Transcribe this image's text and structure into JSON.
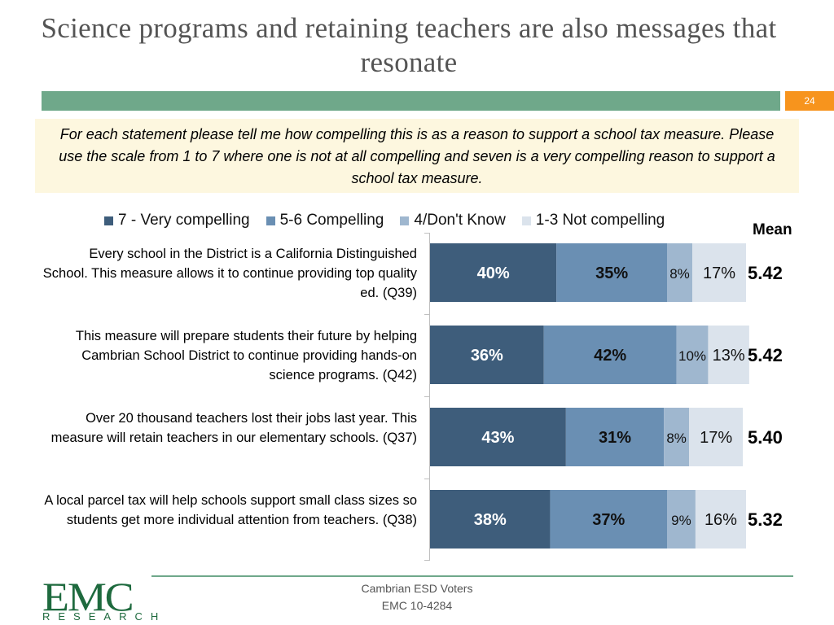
{
  "slide": {
    "title": "Science programs and retaining teachers are also messages that resonate",
    "page_number": "24",
    "question": "For each statement please tell me how compelling this is as a reason to support a school tax measure. Please use the scale from 1 to 7 where one is not at all compelling and seven is a very compelling reason to support a school tax measure.",
    "mean_header": "Mean",
    "footer_line1": "Cambrian ESD Voters",
    "footer_line2": "EMC 10-4284",
    "logo_text": "EMC",
    "logo_subtext": "RESEARCH"
  },
  "colors": {
    "accent_green": "#6fa88a",
    "page_badge": "#f7941d",
    "question_bg": "#fdf7df"
  },
  "chart_data": {
    "type": "bar",
    "orientation": "horizontal",
    "stacked": true,
    "xlim": [
      0,
      100
    ],
    "legend_position": "top",
    "categories": [
      "Every school in the District is a California Distinguished School. This measure allows it to continue providing top quality ed. (Q39)",
      "This measure will prepare students their future by helping Cambrian School District to continue providing hands-on science programs. (Q42)",
      "Over 20 thousand teachers lost their jobs last year. This measure will retain teachers in our elementary schools. (Q37)",
      "A local parcel tax will help schools support small class sizes so students get more individual attention from teachers. (Q38)"
    ],
    "series": [
      {
        "name": "7 - Very compelling",
        "color": "#3e5d7b",
        "label_color": "#ffffff",
        "values": [
          40,
          36,
          43,
          38
        ]
      },
      {
        "name": "5-6 Compelling",
        "color": "#6a8fb3",
        "label_color": "#111111",
        "values": [
          35,
          42,
          31,
          37
        ]
      },
      {
        "name": "4/Don't Know",
        "color": "#9fb7cf",
        "label_color": "#111111",
        "values": [
          8,
          10,
          8,
          9
        ]
      },
      {
        "name": "1-3 Not compelling",
        "color": "#dbe3ec",
        "label_color": "#111111",
        "values": [
          17,
          13,
          17,
          16
        ]
      }
    ],
    "means": [
      "5.42",
      "5.42",
      "5.40",
      "5.32"
    ]
  }
}
